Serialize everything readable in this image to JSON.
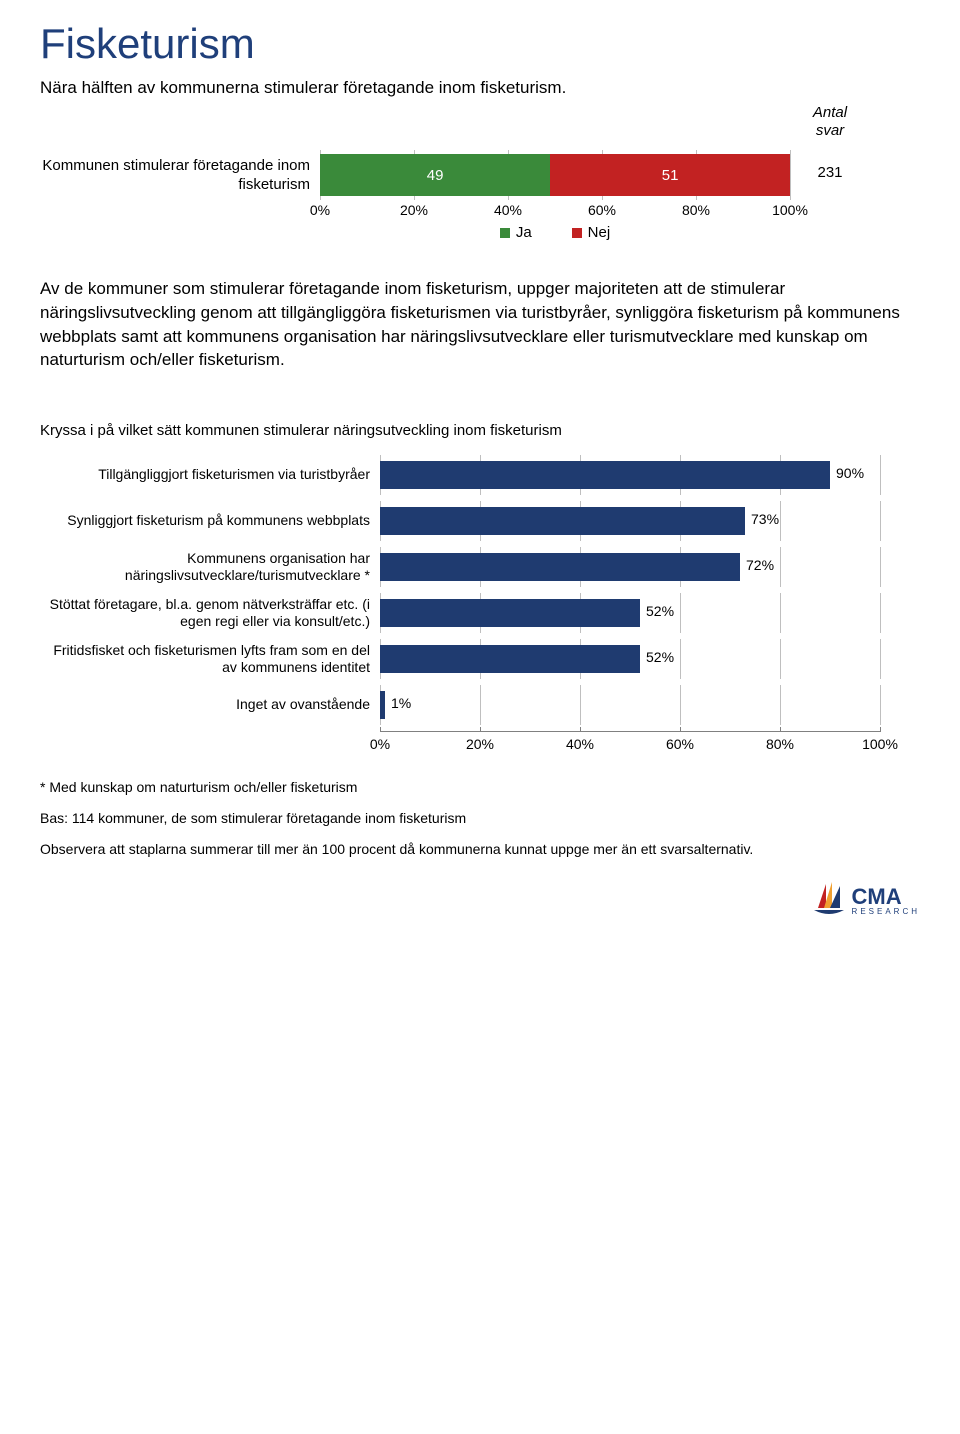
{
  "title": "Fisketurism",
  "subtitle": "Nära hälften av kommunerna stimulerar företagande inom fisketurism.",
  "chart1": {
    "type": "stacked-bar-horizontal",
    "ylabel": "Kommunen stimulerar företagande inom fisketurism",
    "segments": [
      {
        "label": "49",
        "value": 49,
        "color": "#3a8a3a"
      },
      {
        "label": "51",
        "value": 51,
        "color": "#c22222"
      }
    ],
    "antal_header": "Antal svar",
    "antal_value": "231",
    "xlim": [
      0,
      100
    ],
    "xticks": [
      0,
      20,
      40,
      60,
      80,
      100
    ],
    "xtick_labels": [
      "0%",
      "20%",
      "40%",
      "60%",
      "80%",
      "100%"
    ],
    "grid_color": "#bfbfbf",
    "legend": [
      {
        "label": "Ja",
        "color": "#3a8a3a"
      },
      {
        "label": "Nej",
        "color": "#c22222"
      }
    ]
  },
  "body_text": "Av de kommuner som stimulerar företagande inom fisketurism, uppger majoriteten att de stimulerar näringslivsutveckling genom att tillgängliggöra fisketurismen via turistbyråer, synliggöra fisketurism på kommunens webbplats samt att kommunens organisation har näringslivsutvecklare eller turismutvecklare med kunskap om naturturism och/eller fisketurism.",
  "chart2": {
    "type": "bar-horizontal",
    "title": "Kryssa i på vilket sätt kommunen stimulerar näringsutveckling inom fisketurism",
    "bar_color": "#1f3b70",
    "grid_color": "#bfbfbf",
    "value_suffix": "%",
    "xlim": [
      0,
      100
    ],
    "xticks": [
      0,
      20,
      40,
      60,
      80,
      100
    ],
    "xtick_labels": [
      "0%",
      "20%",
      "40%",
      "60%",
      "80%",
      "100%"
    ],
    "items": [
      {
        "label": "Tillgängliggjort fisketurismen via turistbyråer",
        "value": 90
      },
      {
        "label": "Synliggjort fisketurism på kommunens webbplats",
        "value": 73
      },
      {
        "label": "Kommunens organisation har näringslivsutvecklare/turismutvecklare *",
        "value": 72
      },
      {
        "label": "Stöttat företagare, bl.a. genom nätverksträffar etc. (i egen regi eller via konsult/etc.)",
        "value": 52
      },
      {
        "label": "Fritidsfisket och fisketurismen lyfts fram som en del av kommunens identitet",
        "value": 52
      },
      {
        "label": "Inget av ovanstående",
        "value": 1
      }
    ]
  },
  "footnotes": [
    "* Med kunskap om naturturism och/eller fisketurism",
    "Bas: 114 kommuner, de som stimulerar företagande inom fisketurism",
    "Observera att staplarna summerar till mer än 100 procent då kommunerna kunnat uppge mer än ett svarsalternativ."
  ],
  "logo": {
    "text": "CMA",
    "subtext": "RESEARCH",
    "sail_colors": [
      "#c22222",
      "#f0a030",
      "#1f3b70"
    ]
  }
}
